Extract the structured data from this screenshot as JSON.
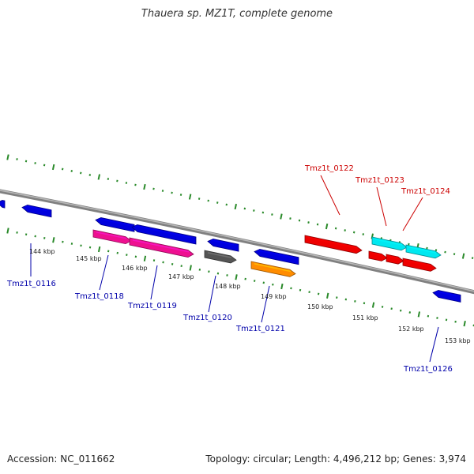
{
  "title": "Thauera sp. MZ1T, complete genome",
  "accession": "Accession: NC_011662",
  "topology": "Topology: circular; Length: 4,496,212 bp; Genes: 3,974",
  "colors": {
    "backbone": "#808080",
    "tick": "#2a8a2a",
    "forward_label": "#cc0000",
    "reverse_label": "#0000aa",
    "blue": "#0000dd",
    "magenta": "#ee1090",
    "gray": "#555555",
    "orange": "#ff8c00",
    "red": "#ee0000",
    "cyan": "#00e8f0"
  },
  "scale": {
    "unit": "kbp",
    "labels": [
      "144 kbp",
      "145 kbp",
      "146 kbp",
      "147 kbp",
      "148 kbp",
      "149 kbp",
      "150 kbp",
      "151 kbp",
      "152 kbp",
      "153 kbp"
    ]
  },
  "gene_labels": {
    "reverse": [
      "Tmz1t_0116",
      "Tmz1t_0118",
      "Tmz1t_0119",
      "Tmz1t_0120",
      "Tmz1t_0121",
      "Tmz1t_0126"
    ],
    "forward": [
      "Tmz1t_0122",
      "Tmz1t_0123",
      "Tmz1t_0124"
    ]
  }
}
